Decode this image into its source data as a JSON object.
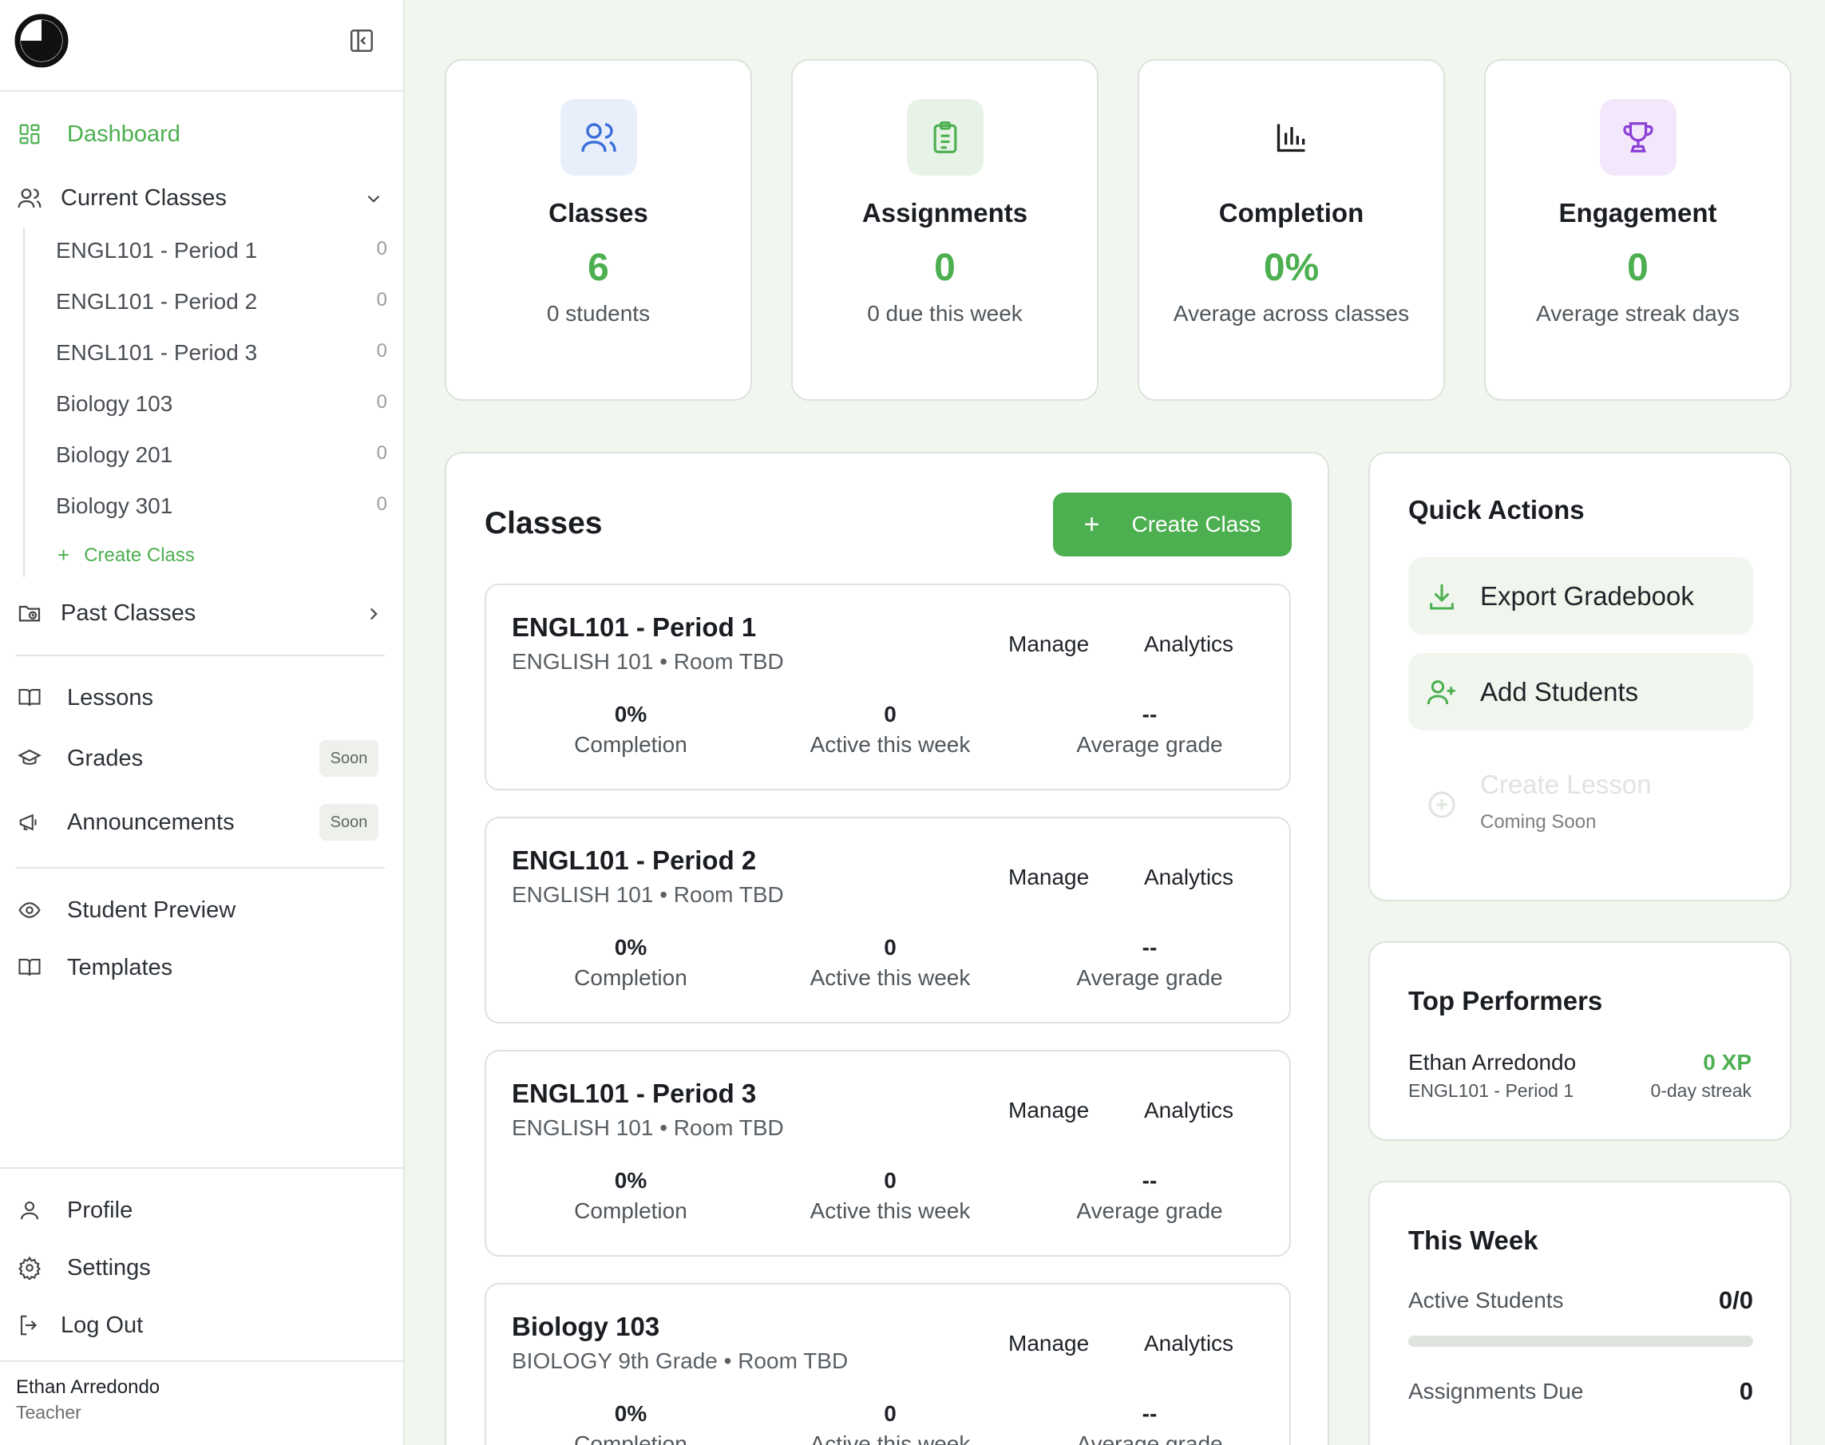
{
  "sidebar": {
    "nav": {
      "dashboard": "Dashboard",
      "current_classes": "Current Classes",
      "past_classes": "Past Classes",
      "lessons": "Lessons",
      "grades": "Grades",
      "announcements": "Announcements",
      "student_preview": "Student Preview",
      "templates": "Templates",
      "profile": "Profile",
      "settings": "Settings",
      "logout": "Log Out"
    },
    "soon_badge": "Soon",
    "classes": [
      {
        "name": "ENGL101 - Period 1",
        "count": "0"
      },
      {
        "name": "ENGL101 - Period 2",
        "count": "0"
      },
      {
        "name": "ENGL101 - Period 3",
        "count": "0"
      },
      {
        "name": "Biology 103",
        "count": "0"
      },
      {
        "name": "Biology 201",
        "count": "0"
      },
      {
        "name": "Biology 301",
        "count": "0"
      }
    ],
    "create_class": "Create Class",
    "user": {
      "name": "Ethan Arredondo",
      "role": "Teacher"
    }
  },
  "stats": [
    {
      "label": "Classes",
      "value": "6",
      "sub": "0 students",
      "icon": "users-icon",
      "bg": "#e8effb",
      "color": "#3b6fd8"
    },
    {
      "label": "Assignments",
      "value": "0",
      "sub": "0 due this week",
      "icon": "clipboard-icon",
      "bg": "#e6f3e6",
      "color": "#4caf50"
    },
    {
      "label": "Completion",
      "value": "0%",
      "sub": "Average across classes",
      "icon": "bar-chart-icon",
      "bg": "#ffffff",
      "color": "#1a1d21"
    },
    {
      "label": "Engagement",
      "value": "0",
      "sub": "Average streak days",
      "icon": "trophy-icon",
      "bg": "#f3e8fb",
      "color": "#8b3fd6"
    }
  ],
  "classes_panel": {
    "title": "Classes",
    "create_button": "Create Class",
    "manage_label": "Manage",
    "analytics_label": "Analytics",
    "metric_labels": {
      "completion": "Completion",
      "active": "Active this week",
      "grade": "Average grade"
    },
    "cards": [
      {
        "name": "ENGL101 - Period 1",
        "sub": "ENGLISH 101 • Room TBD",
        "completion": "0%",
        "active": "0",
        "grade": "--"
      },
      {
        "name": "ENGL101 - Period 2",
        "sub": "ENGLISH 101 • Room TBD",
        "completion": "0%",
        "active": "0",
        "grade": "--"
      },
      {
        "name": "ENGL101 - Period 3",
        "sub": "ENGLISH 101 • Room TBD",
        "completion": "0%",
        "active": "0",
        "grade": "--"
      },
      {
        "name": "Biology 103",
        "sub": "BIOLOGY 9th Grade • Room TBD",
        "completion": "0%",
        "active": "0",
        "grade": "--"
      }
    ]
  },
  "quick_actions": {
    "title": "Quick Actions",
    "export": "Export Gradebook",
    "add_students": "Add Students",
    "create_lesson": "Create Lesson",
    "coming_soon": "Coming Soon"
  },
  "top_performers": {
    "title": "Top Performers",
    "items": [
      {
        "name": "Ethan Arredondo",
        "class": "ENGL101 - Period 1",
        "xp": "0 XP",
        "streak": "0-day streak"
      }
    ]
  },
  "this_week": {
    "title": "This Week",
    "active_label": "Active Students",
    "active_value": "0/0",
    "active_fraction": 0,
    "due_label": "Assignments Due",
    "due_value": "0"
  }
}
